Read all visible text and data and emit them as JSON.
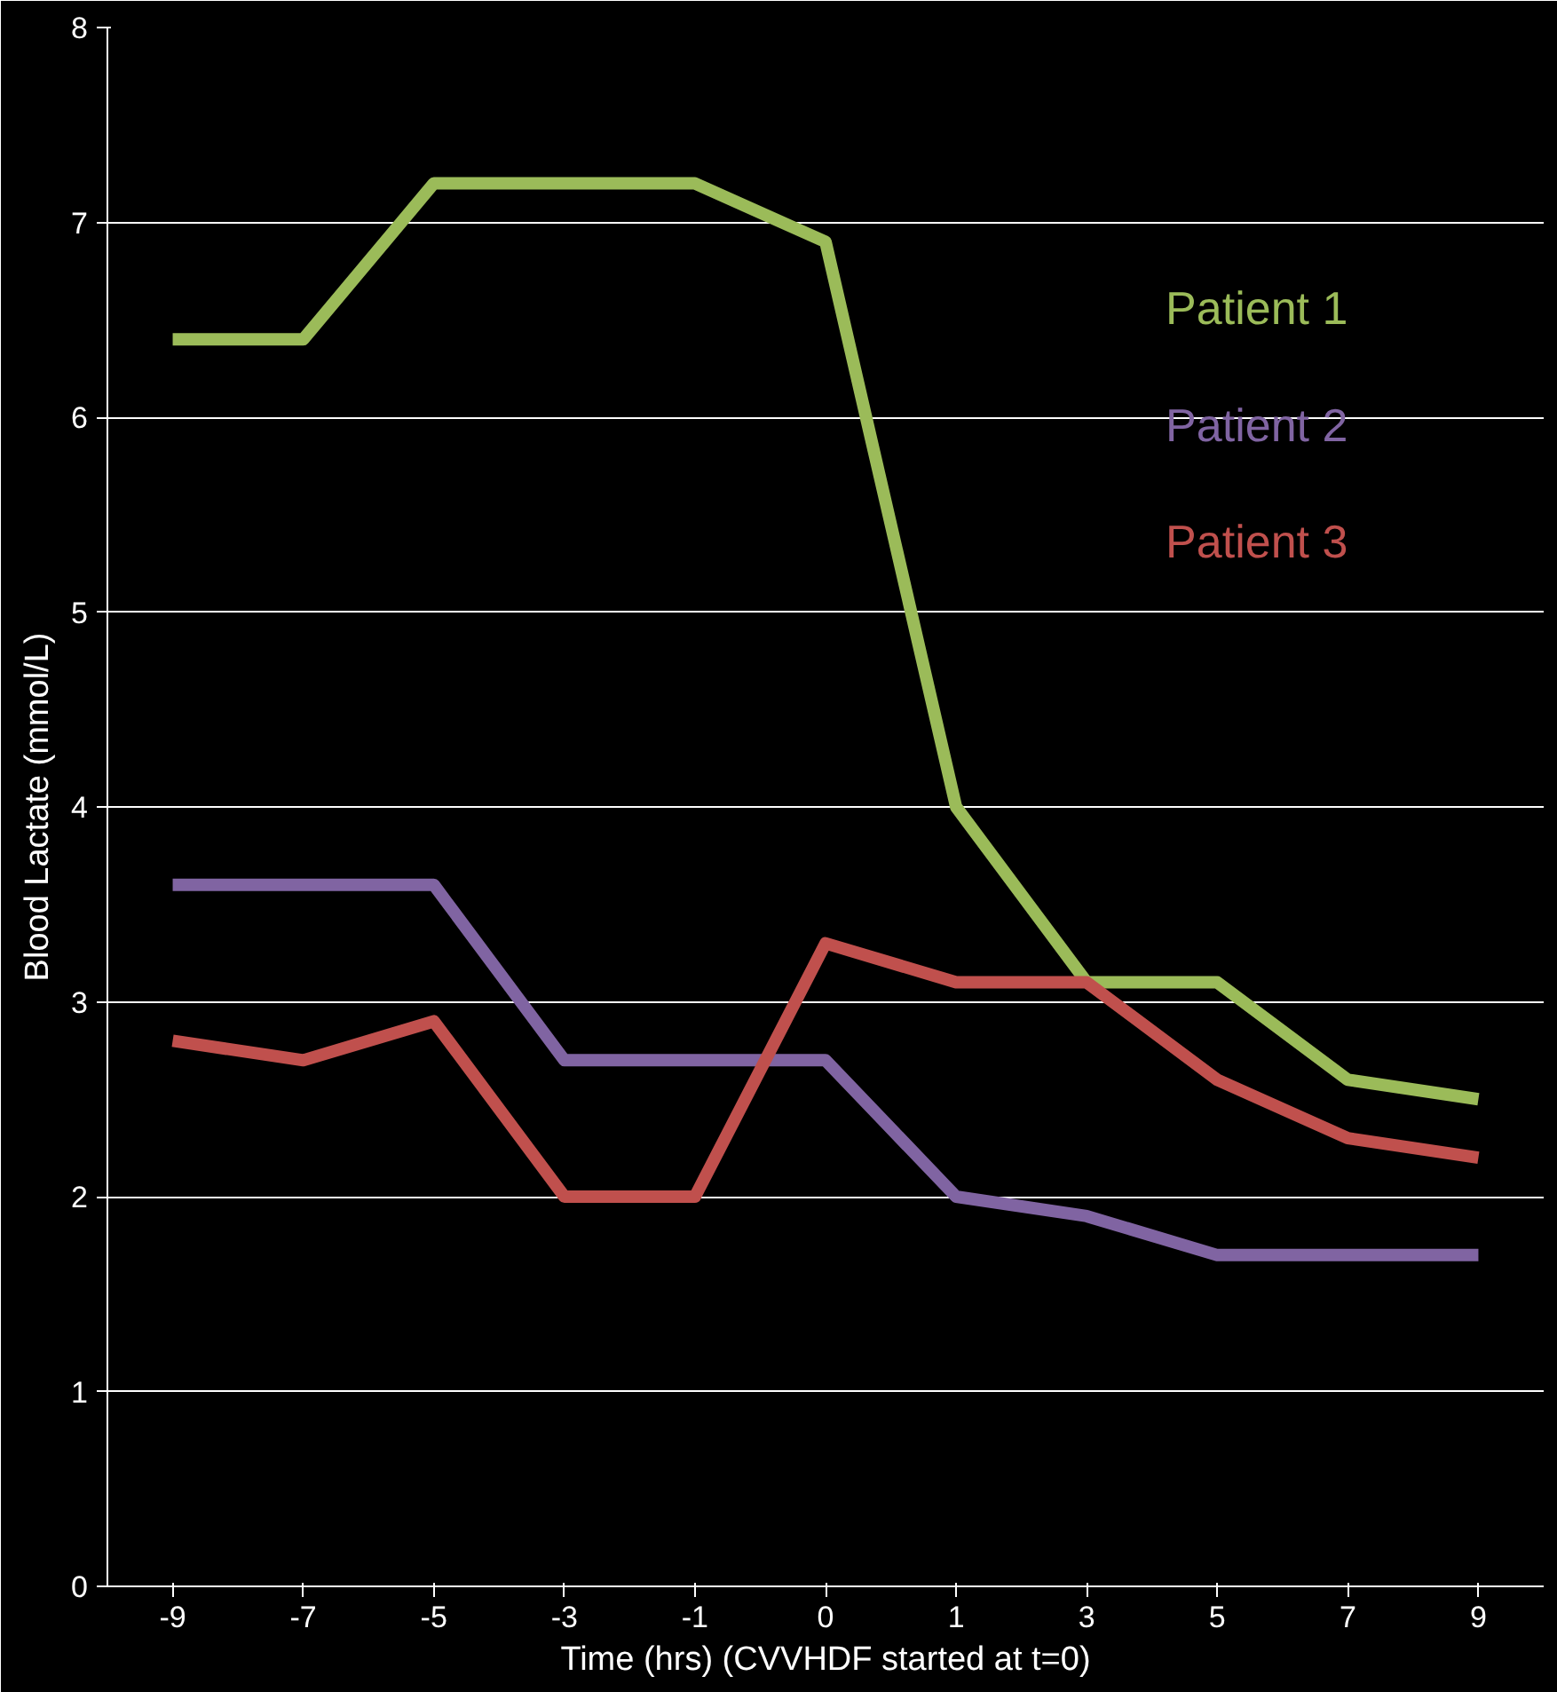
{
  "chart_data": {
    "type": "line",
    "xlabel": "Time (hrs) (CVVHDF started at t=0)",
    "ylabel": "Blood Lactate (mmol/L)",
    "categories": [
      "-9",
      "-7",
      "-5",
      "-3",
      "-1",
      "0",
      "1",
      "3",
      "5",
      "7",
      "9"
    ],
    "series": [
      {
        "name": "Patient 1",
        "color": "#9bbb59",
        "values": [
          6.4,
          6.4,
          7.2,
          7.2,
          7.2,
          6.9,
          4.0,
          3.1,
          3.1,
          2.6,
          2.5
        ]
      },
      {
        "name": "Patient 2",
        "color": "#8064a2",
        "values": [
          3.6,
          3.6,
          3.6,
          2.7,
          2.7,
          2.7,
          2.0,
          1.9,
          1.7,
          1.7,
          1.7
        ]
      },
      {
        "name": "Patient 3",
        "color": "#c0504d",
        "values": [
          2.8,
          2.7,
          2.9,
          2.0,
          2.0,
          3.3,
          3.1,
          3.1,
          2.6,
          2.3,
          2.2
        ]
      }
    ],
    "ylim": [
      0,
      8
    ],
    "yticks": [
      0,
      1,
      2,
      3,
      4,
      5,
      6,
      7,
      8
    ],
    "grid": "y",
    "legend": "top right",
    "marker": "none",
    "line_style": "solid"
  }
}
